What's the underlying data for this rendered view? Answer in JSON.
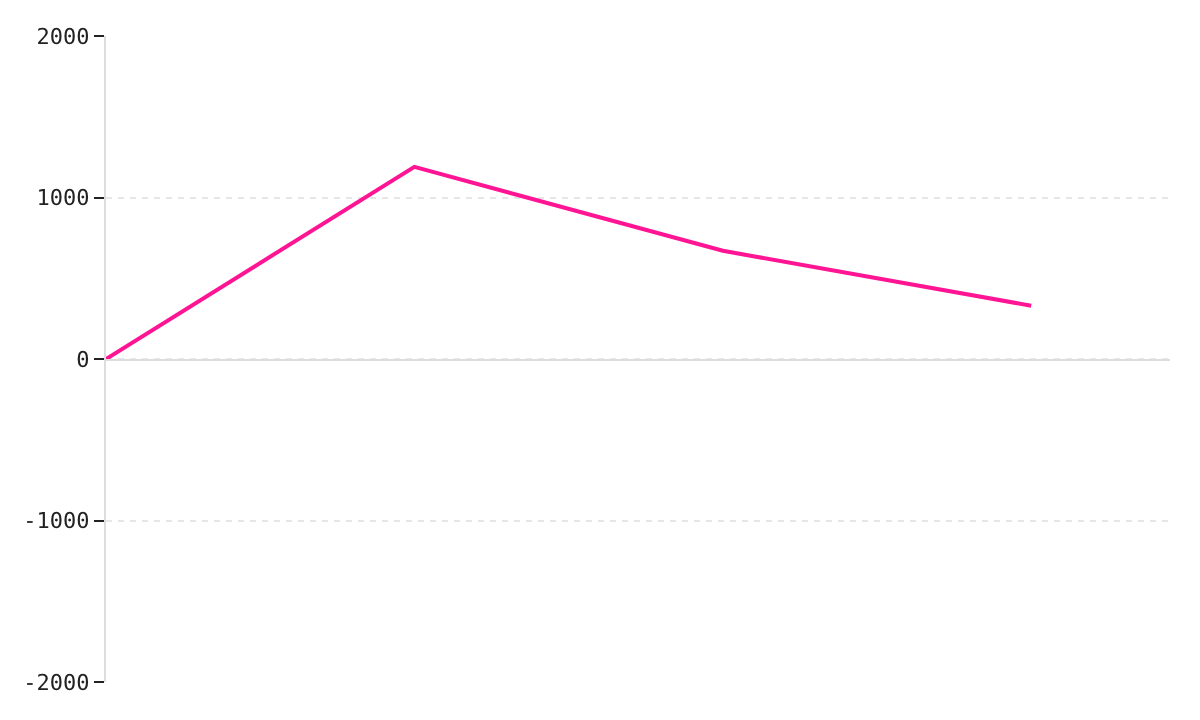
{
  "chart_data": {
    "type": "line",
    "categories": [
      null,
      null,
      null,
      null
    ],
    "series": [
      {
        "color": "#ff1493",
        "values": [
          0,
          1190,
          670,
          330
        ]
      }
    ],
    "ylim": [
      -2000,
      2000
    ],
    "yticks": [
      -2000,
      -1000,
      0,
      1000,
      2000
    ],
    "grid": "y",
    "tick_labels": "y",
    "marker": "none",
    "line_style": "solid"
  }
}
